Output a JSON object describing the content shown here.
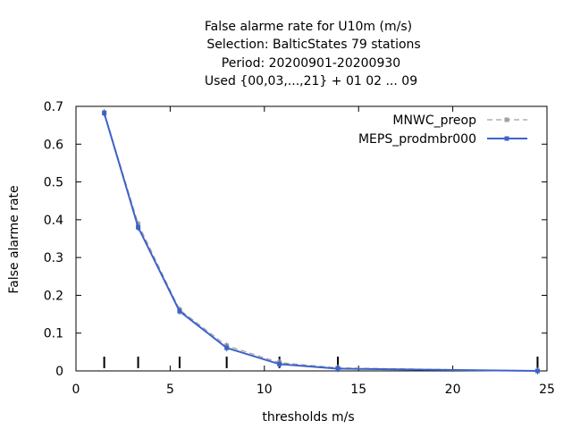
{
  "chart_data": {
    "type": "line",
    "title_lines": [
      "False alarme rate  for U10m (m/s)",
      "Selection: BalticStates     79 stations",
      "Period: 20200901-20200930",
      "Used {00,03,...,21} + 01 02 ... 09"
    ],
    "xlabel": "thresholds m/s",
    "ylabel": "False alarme rate",
    "xlim": [
      0,
      25
    ],
    "ylim": [
      0,
      0.7
    ],
    "xticks": [
      0,
      5,
      10,
      15,
      20,
      25
    ],
    "yticks": [
      0,
      0.1,
      0.2,
      0.3,
      0.4,
      0.5,
      0.6,
      0.7
    ],
    "xtick_labels": [
      "0",
      "5",
      "10",
      "15",
      "20",
      "25"
    ],
    "ytick_labels": [
      "0",
      "0.1",
      "0.2",
      "0.3",
      "0.4",
      "0.5",
      "0.6",
      "0.7"
    ],
    "threshold_markers": [
      1.5,
      3.3,
      5.5,
      8.0,
      10.8,
      13.9,
      24.5
    ],
    "legend_position": "top-right",
    "series": [
      {
        "name": "MNWC_preop",
        "color": "#a0a0a0",
        "style": "dashed",
        "x": [
          1.5,
          3.3,
          5.5,
          8.0,
          10.8,
          13.9,
          24.5
        ],
        "y": [
          0.684,
          0.389,
          0.162,
          0.067,
          0.022,
          0.008,
          0.0
        ]
      },
      {
        "name": "MEPS_prodmbr000",
        "color": "#3d63c9",
        "style": "solid",
        "x": [
          1.5,
          3.3,
          5.5,
          8.0,
          10.8,
          13.9,
          24.5
        ],
        "y": [
          0.682,
          0.38,
          0.158,
          0.061,
          0.018,
          0.006,
          0.0
        ]
      }
    ]
  }
}
